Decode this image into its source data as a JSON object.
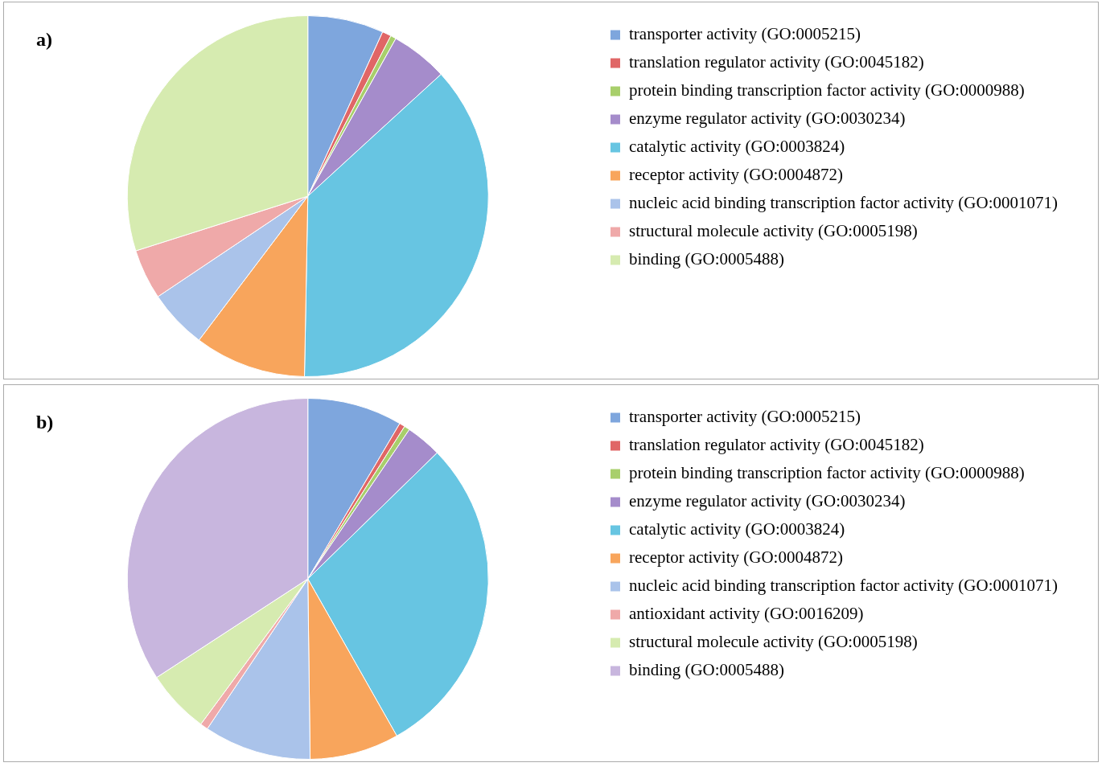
{
  "chart_data": [
    {
      "type": "pie",
      "title": "a)",
      "legend": "right",
      "categories": [
        "transporter activity (GO:0005215)",
        "translation regulator activity (GO:0045182)",
        "protein binding transcription factor activity (GO:0000988)",
        "enzyme regulator activity (GO:0030234)",
        "catalytic activity (GO:0003824)",
        "receptor activity (GO:0004872)",
        "nucleic acid binding transcription factor activity (GO:0001071)",
        "structural molecule activity (GO:0005198)",
        "binding (GO:0005488)"
      ],
      "values": [
        6.8,
        0.8,
        0.5,
        5.1,
        37.1,
        10.0,
        5.3,
        4.5,
        29.9
      ],
      "colors": [
        "#7ea6dd",
        "#e06666",
        "#a8cf6b",
        "#a58ccb",
        "#67c5e2",
        "#f8a55c",
        "#aac3ea",
        "#efa9a9",
        "#d6ebb0"
      ]
    },
    {
      "type": "pie",
      "title": "b)",
      "legend": "right",
      "categories": [
        "transporter activity (GO:0005215)",
        "translation regulator activity (GO:0045182)",
        "protein binding transcription factor activity (GO:0000988)",
        "enzyme regulator activity (GO:0030234)",
        "catalytic activity (GO:0003824)",
        "receptor activity (GO:0004872)",
        "nucleic acid binding transcription factor activity (GO:0001071)",
        "antioxidant activity (GO:0016209)",
        "structural molecule activity (GO:0005198)",
        "binding (GO:0005488)"
      ],
      "values": [
        8.5,
        0.5,
        0.5,
        3.2,
        29.1,
        8.0,
        9.6,
        0.7,
        5.7,
        34.2
      ],
      "colors": [
        "#7ea6dd",
        "#e06666",
        "#a8cf6b",
        "#a58ccb",
        "#67c5e2",
        "#f8a55c",
        "#aac3ea",
        "#efa9a9",
        "#d6ebb0",
        "#c8b6de"
      ]
    }
  ]
}
